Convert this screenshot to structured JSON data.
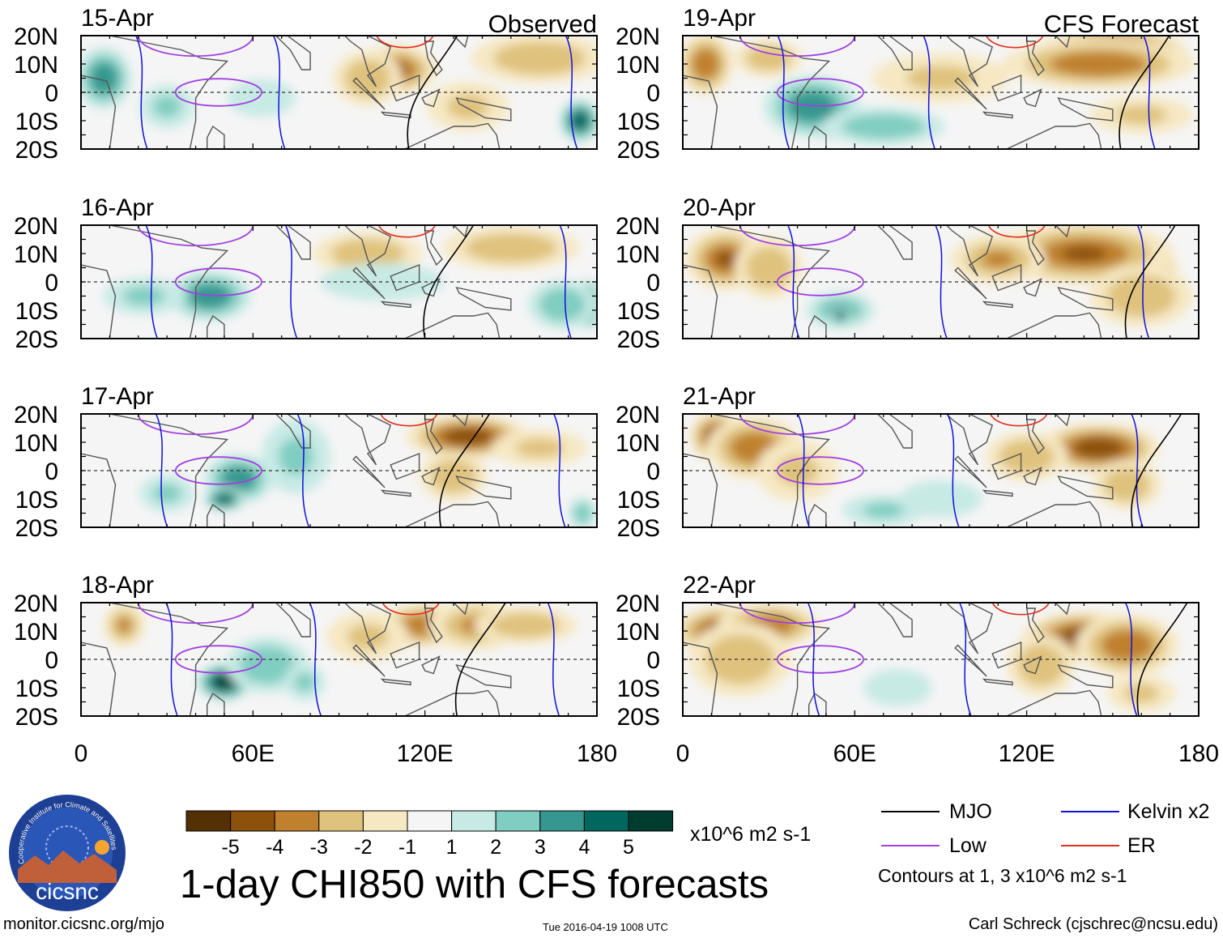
{
  "title": "1-day CHI850 with CFS forecasts",
  "units": "x10^6 m2 s-1",
  "observed_label": "Observed",
  "forecast_label": "CFS Forecast",
  "logo_text": "cicsnc",
  "logo_ring_text": "Cooperative Institute for Climate and Satellites",
  "footer": {
    "site": "monitor.cicsnc.org/mjo",
    "timestamp": "Tue 2016-04-19 1008 UTC",
    "author": "Carl Schreck (cjschrec@ncsu.edu)"
  },
  "legend": {
    "mjo": "MJO",
    "low": "Low",
    "kelvin": "Kelvin x2",
    "er": "ER",
    "contour_note": "Contours at 1, 3 x10^6 m2 s-1",
    "colors": {
      "mjo": "#000000",
      "low": "#a040e0",
      "kelvin": "#1010dd",
      "er": "#e03020"
    }
  },
  "colorbar": {
    "ticks": [
      "-5",
      "-4",
      "-3",
      "-2",
      "-1",
      "1",
      "2",
      "3",
      "4",
      "5"
    ],
    "colors": [
      "#543005",
      "#8c510a",
      "#bf812d",
      "#dfc27d",
      "#f6e8c3",
      "#f5f5f5",
      "#c7eae5",
      "#80cdc1",
      "#35978f",
      "#01665e",
      "#003c30"
    ]
  },
  "chart_data": {
    "type": "heatmap",
    "title": "1-day CHI850 with CFS forecasts",
    "x_ticks": [
      "0",
      "60E",
      "120E",
      "180"
    ],
    "y_ticks": [
      "20N",
      "10N",
      "0",
      "10S",
      "20S"
    ],
    "xlim": [
      0,
      180
    ],
    "ylim": [
      -20,
      20
    ],
    "panels": [
      {
        "date": "15-Apr",
        "kind": "observed",
        "blobs": [
          [
            110,
            8,
            12,
            8,
            -3.5
          ],
          [
            100,
            5,
            10,
            9,
            -2
          ],
          [
            135,
            -5,
            12,
            8,
            -1.5
          ],
          [
            160,
            12,
            20,
            8,
            -2
          ],
          [
            8,
            5,
            8,
            10,
            3
          ],
          [
            30,
            -5,
            8,
            7,
            1.5
          ],
          [
            174,
            -10,
            6,
            7,
            4
          ],
          [
            63,
            -2,
            10,
            6,
            1
          ]
        ]
      },
      {
        "date": "16-Apr",
        "kind": "observed",
        "blobs": [
          [
            100,
            10,
            16,
            7,
            -2
          ],
          [
            150,
            12,
            20,
            7,
            -2
          ],
          [
            45,
            -5,
            12,
            8,
            3
          ],
          [
            22,
            -5,
            12,
            6,
            1.5
          ],
          [
            177,
            -8,
            4,
            8,
            5
          ],
          [
            168,
            -8,
            10,
            8,
            2
          ],
          [
            105,
            0,
            18,
            6,
            1
          ]
        ]
      },
      {
        "date": "17-Apr",
        "kind": "observed",
        "blobs": [
          [
            135,
            12,
            18,
            7,
            -4
          ],
          [
            130,
            -2,
            10,
            8,
            -2
          ],
          [
            160,
            8,
            14,
            6,
            -1.5
          ],
          [
            55,
            -3,
            10,
            8,
            3
          ],
          [
            50,
            -10,
            6,
            4,
            4
          ],
          [
            75,
            5,
            10,
            12,
            1.5
          ],
          [
            30,
            -8,
            8,
            6,
            1.5
          ],
          [
            175,
            -15,
            4,
            5,
            2
          ]
        ]
      },
      {
        "date": "18-Apr",
        "kind": "observed",
        "blobs": [
          [
            120,
            12,
            14,
            7,
            -3
          ],
          [
            138,
            12,
            14,
            8,
            -2.5
          ],
          [
            155,
            12,
            15,
            6,
            -2
          ],
          [
            15,
            12,
            6,
            7,
            -2.5
          ],
          [
            50,
            -8,
            8,
            6,
            5
          ],
          [
            65,
            -2,
            12,
            9,
            2
          ],
          [
            78,
            -8,
            6,
            6,
            1.5
          ],
          [
            100,
            8,
            12,
            8,
            -1.5
          ]
        ]
      },
      {
        "date": "19-Apr",
        "kind": "forecast",
        "blobs": [
          [
            150,
            14,
            22,
            8,
            -5
          ],
          [
            145,
            10,
            28,
            8,
            -3
          ],
          [
            8,
            10,
            8,
            10,
            -3
          ],
          [
            30,
            12,
            10,
            6,
            -2
          ],
          [
            50,
            -10,
            8,
            6,
            5
          ],
          [
            45,
            -5,
            14,
            10,
            3
          ],
          [
            70,
            -12,
            18,
            6,
            2
          ],
          [
            90,
            5,
            20,
            8,
            -1.5
          ],
          [
            160,
            -8,
            15,
            6,
            -1.5
          ]
        ]
      },
      {
        "date": "20-Apr",
        "kind": "forecast",
        "blobs": [
          [
            155,
            5,
            15,
            8,
            -5
          ],
          [
            140,
            10,
            26,
            10,
            -3.5
          ],
          [
            110,
            8,
            14,
            8,
            -2.5
          ],
          [
            15,
            8,
            12,
            10,
            -3.5
          ],
          [
            30,
            5,
            10,
            10,
            -2
          ],
          [
            55,
            -10,
            10,
            6,
            2.5
          ],
          [
            55,
            -12,
            3,
            3,
            4
          ],
          [
            160,
            -5,
            15,
            10,
            -2
          ]
        ]
      },
      {
        "date": "21-Apr",
        "kind": "forecast",
        "blobs": [
          [
            12,
            12,
            8,
            8,
            -4.5
          ],
          [
            25,
            8,
            14,
            10,
            -3
          ],
          [
            145,
            8,
            18,
            8,
            -4
          ],
          [
            120,
            5,
            12,
            8,
            -2
          ],
          [
            155,
            -5,
            10,
            8,
            -2
          ],
          [
            40,
            0,
            12,
            10,
            -1.5
          ],
          [
            70,
            -14,
            12,
            5,
            1.5
          ],
          [
            90,
            -10,
            12,
            6,
            1
          ]
        ]
      },
      {
        "date": "22-Apr",
        "kind": "forecast",
        "blobs": [
          [
            15,
            10,
            15,
            8,
            -4
          ],
          [
            30,
            12,
            15,
            7,
            -3
          ],
          [
            140,
            8,
            18,
            8,
            -4
          ],
          [
            155,
            5,
            15,
            10,
            -3
          ],
          [
            125,
            -2,
            10,
            10,
            -2
          ],
          [
            20,
            0,
            15,
            12,
            -2
          ],
          [
            160,
            -12,
            10,
            6,
            -1.5
          ],
          [
            75,
            -10,
            10,
            6,
            1
          ]
        ]
      }
    ]
  }
}
